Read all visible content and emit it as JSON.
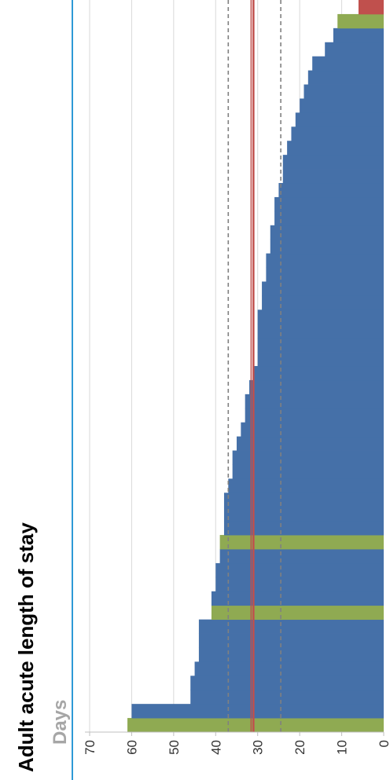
{
  "chart_data": {
    "type": "bar",
    "orientation": "horizontal",
    "title": "Adult acute length of stay",
    "ylabel": "Days",
    "xlim": [
      0,
      70
    ],
    "ticks": [
      "0",
      "10",
      "20",
      "30",
      "40",
      "50",
      "60",
      "70"
    ],
    "tick_values": [
      0,
      10,
      20,
      30,
      40,
      50,
      60,
      70
    ],
    "grid": true,
    "values": [
      61,
      60,
      46,
      46,
      45,
      44,
      44,
      44,
      41,
      41,
      40,
      40,
      39,
      39,
      38,
      38,
      38,
      37,
      36,
      36,
      35,
      34,
      33,
      33,
      32,
      31,
      30,
      30,
      30,
      30,
      29,
      29,
      28,
      28,
      27,
      27,
      26,
      26,
      25,
      24,
      24,
      23,
      22,
      21,
      20,
      19,
      18,
      17,
      14,
      12,
      11,
      6
    ],
    "bar_colors": [
      "#8faa52",
      "#4570a8",
      "#4570a8",
      "#4570a8",
      "#4570a8",
      "#4570a8",
      "#4570a8",
      "#4570a8",
      "#8faa52",
      "#4570a8",
      "#4570a8",
      "#4570a8",
      "#4570a8",
      "#8faa52",
      "#4570a8",
      "#4570a8",
      "#4570a8",
      "#4570a8",
      "#4570a8",
      "#4570a8",
      "#4570a8",
      "#4570a8",
      "#4570a8",
      "#4570a8",
      "#4570a8",
      "#4570a8",
      "#4570a8",
      "#4570a8",
      "#4570a8",
      "#4570a8",
      "#4570a8",
      "#4570a8",
      "#4570a8",
      "#4570a8",
      "#4570a8",
      "#4570a8",
      "#4570a8",
      "#4570a8",
      "#4570a8",
      "#4570a8",
      "#4570a8",
      "#4570a8",
      "#4570a8",
      "#4570a8",
      "#4570a8",
      "#4570a8",
      "#4570a8",
      "#4570a8",
      "#4570a8",
      "#4570a8",
      "#8faa52",
      "#c0504d"
    ],
    "reference_lines": [
      {
        "value": 31,
        "style": "solid",
        "color": "#c0504d"
      },
      {
        "value": 37,
        "style": "dashed",
        "color": "#808080"
      },
      {
        "value": 24.5,
        "style": "dashed",
        "color": "#808080"
      }
    ]
  },
  "colors": {
    "bar": "#4570a8",
    "highlight_bar": "#8faa52",
    "self_bar": "#c0504d",
    "gridline": "#d9d9d9",
    "divider": "#2e9ad6"
  }
}
